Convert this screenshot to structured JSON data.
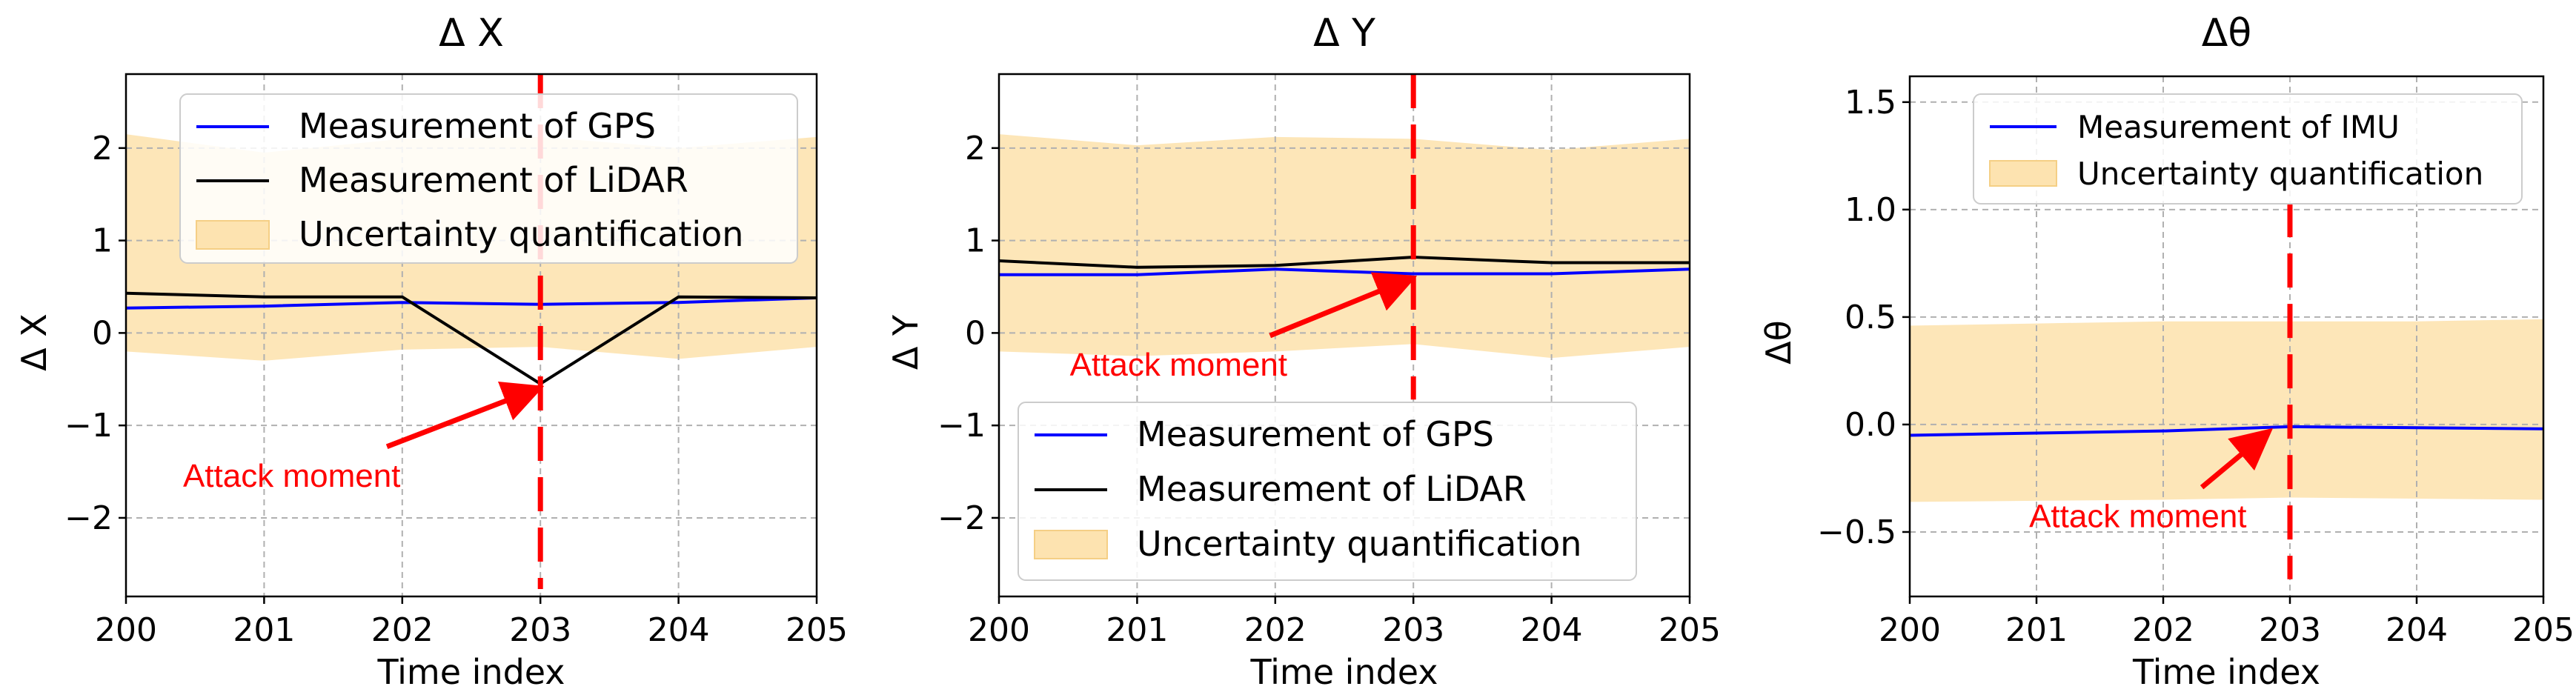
{
  "chart_data": [
    {
      "type": "line",
      "title": "Δ X",
      "xlabel": "Time index",
      "ylabel": "Δ X",
      "x": [
        200,
        201,
        202,
        203,
        204,
        205
      ],
      "xlim": [
        200,
        205
      ],
      "ylim": [
        -2.85,
        2.8
      ],
      "xticks": [
        200,
        201,
        202,
        203,
        204,
        205
      ],
      "yticks": [
        -2,
        -1,
        0,
        1,
        2
      ],
      "ytick_labels": [
        "−2",
        "−1",
        "0",
        "1",
        "2"
      ],
      "grid": true,
      "series": [
        {
          "name": "Measurement of GPS",
          "color": "#0000ff",
          "values": [
            0.27,
            0.29,
            0.33,
            0.31,
            0.33,
            0.38
          ]
        },
        {
          "name": "Measurement of LiDAR",
          "color": "#000000",
          "values": [
            0.43,
            0.39,
            0.39,
            -0.55,
            0.39,
            0.38
          ]
        }
      ],
      "band": {
        "name": "Uncertainty quantification",
        "color": "#fde3b0",
        "upper": [
          2.15,
          1.95,
          2.1,
          2.12,
          2.0,
          2.12
        ],
        "lower": [
          -0.2,
          -0.3,
          -0.18,
          -0.15,
          -0.28,
          -0.15
        ]
      },
      "attack": {
        "x": 203,
        "y_from": 2.8,
        "y_to": -2.8,
        "color": "#ff0000"
      },
      "annotation": {
        "text": "Attack moment",
        "point": [
          203,
          -0.55
        ],
        "text_at": [
          201.2,
          -1.55
        ]
      },
      "legend": {
        "placement": "top-right",
        "entries": [
          "Measurement of GPS",
          "Measurement of LiDAR",
          "Uncertainty quantification"
        ]
      }
    },
    {
      "type": "line",
      "title": "Δ Y",
      "xlabel": "Time index",
      "ylabel": "Δ Y",
      "x": [
        200,
        201,
        202,
        203,
        204,
        205
      ],
      "xlim": [
        200,
        205
      ],
      "ylim": [
        -2.85,
        2.8
      ],
      "xticks": [
        200,
        201,
        202,
        203,
        204,
        205
      ],
      "yticks": [
        -2,
        -1,
        0,
        1,
        2
      ],
      "ytick_labels": [
        "−2",
        "−1",
        "0",
        "1",
        "2"
      ],
      "grid": true,
      "series": [
        {
          "name": "Measurement of GPS",
          "color": "#0000ff",
          "values": [
            0.63,
            0.63,
            0.69,
            0.64,
            0.64,
            0.69
          ]
        },
        {
          "name": "Measurement of LiDAR",
          "color": "#000000",
          "values": [
            0.78,
            0.71,
            0.73,
            0.82,
            0.76,
            0.76
          ]
        }
      ],
      "band": {
        "name": "Uncertainty quantification",
        "color": "#fde3b0",
        "upper": [
          2.15,
          2.03,
          2.12,
          2.1,
          1.98,
          2.1
        ],
        "lower": [
          -0.2,
          -0.25,
          -0.2,
          -0.12,
          -0.27,
          -0.15
        ]
      },
      "attack": {
        "x": 203,
        "y_from": 2.8,
        "y_to": -0.72,
        "color": "#ff0000"
      },
      "annotation": {
        "text": "Attack moment",
        "point": [
          203,
          0.64
        ],
        "text_at": [
          201.3,
          -0.35
        ]
      },
      "legend": {
        "placement": "lower-left",
        "entries": [
          "Measurement of GPS",
          "Measurement of LiDAR",
          "Uncertainty quantification"
        ]
      }
    },
    {
      "type": "line",
      "title": "Δθ",
      "xlabel": "Time index",
      "ylabel": "Δθ",
      "x": [
        200,
        201,
        202,
        203,
        204,
        205
      ],
      "xlim": [
        200,
        205
      ],
      "ylim": [
        -0.8,
        1.62
      ],
      "xticks": [
        200,
        201,
        202,
        203,
        204,
        205
      ],
      "yticks": [
        -0.5,
        0.0,
        0.5,
        1.0,
        1.5
      ],
      "ytick_labels": [
        "−0.5",
        "0.0",
        "0.5",
        "1.0",
        "1.5"
      ],
      "grid": true,
      "series": [
        {
          "name": "Measurement of IMU",
          "color": "#0000ff",
          "values": [
            -0.05,
            -0.04,
            -0.03,
            -0.01,
            -0.015,
            -0.02
          ]
        }
      ],
      "band": {
        "name": "Uncertainty quantification",
        "color": "#fde3b0",
        "upper": [
          0.46,
          0.47,
          0.48,
          0.48,
          0.48,
          0.49
        ],
        "lower": [
          -0.36,
          -0.355,
          -0.35,
          -0.34,
          -0.345,
          -0.35
        ]
      },
      "attack": {
        "x": 203,
        "y_from": 1.03,
        "y_to": -0.72,
        "color": "#ff0000"
      },
      "annotation": {
        "text": "Attack moment",
        "point": [
          202.85,
          -0.02
        ],
        "text_at": [
          201.8,
          -0.43
        ]
      },
      "legend": {
        "placement": "top-right",
        "entries": [
          "Measurement of IMU",
          "Uncertainty quantification"
        ]
      }
    }
  ]
}
